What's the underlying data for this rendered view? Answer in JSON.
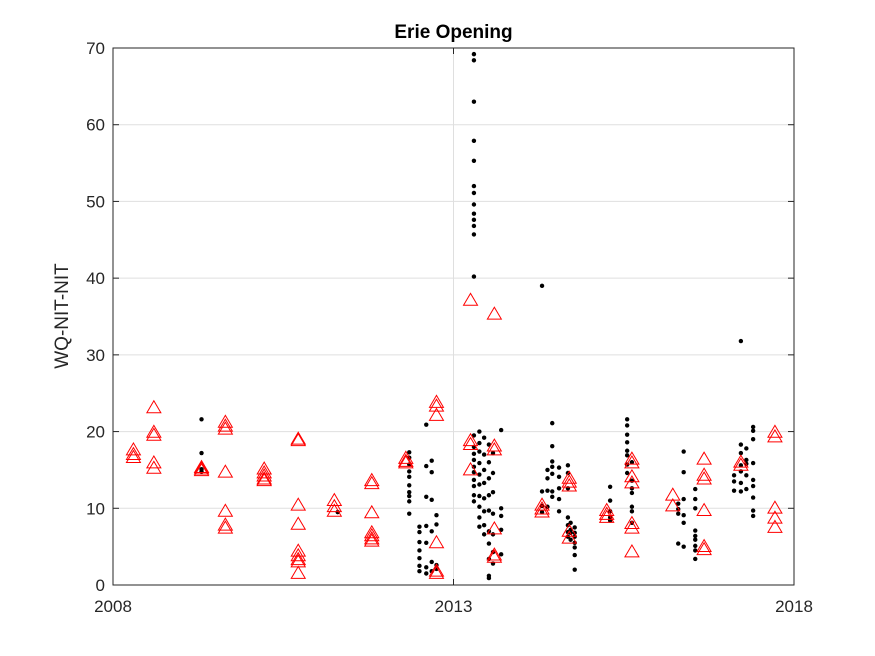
{
  "chart_data": {
    "type": "scatter",
    "title": "Erie Opening",
    "xlabel": "",
    "ylabel": "WQ-NIT-NIT",
    "xlim": [
      2008,
      2018
    ],
    "ylim": [
      0,
      70
    ],
    "x_ticks": [
      {
        "value": 2008,
        "label": "2008"
      },
      {
        "value": 2013,
        "label": "2013"
      },
      {
        "value": 2018,
        "label": "2018"
      }
    ],
    "y_ticks": [
      {
        "value": 0,
        "label": "0"
      },
      {
        "value": 10,
        "label": "10"
      },
      {
        "value": 20,
        "label": "20"
      },
      {
        "value": 30,
        "label": "30"
      },
      {
        "value": 40,
        "label": "40"
      },
      {
        "value": 50,
        "label": "50"
      },
      {
        "value": 60,
        "label": "60"
      },
      {
        "value": 70,
        "label": "70"
      }
    ],
    "grid": true,
    "legend": "none",
    "colors": {
      "observed": "#000000",
      "modeled": "#ff0000",
      "grid": "#dfdfdf",
      "axis": "#262626"
    },
    "series": [
      {
        "marker": "dot",
        "color": "#000000",
        "points": [
          [
            2009.3,
            21.6
          ],
          [
            2009.3,
            17.2
          ],
          [
            2009.3,
            15.1
          ],
          [
            2009.3,
            14.8
          ],
          [
            2011.3,
            9.5
          ],
          [
            2012.35,
            17.3
          ],
          [
            2012.35,
            16.6
          ],
          [
            2012.35,
            15.7
          ],
          [
            2012.35,
            14.8
          ],
          [
            2012.35,
            14.1
          ],
          [
            2012.35,
            13.0
          ],
          [
            2012.35,
            12.1
          ],
          [
            2012.35,
            11.6
          ],
          [
            2012.35,
            10.9
          ],
          [
            2012.35,
            9.3
          ],
          [
            2012.5,
            7.6
          ],
          [
            2012.5,
            6.9
          ],
          [
            2012.5,
            5.6
          ],
          [
            2012.5,
            4.5
          ],
          [
            2012.5,
            3.5
          ],
          [
            2012.5,
            2.5
          ],
          [
            2012.5,
            1.8
          ],
          [
            2012.6,
            20.9
          ],
          [
            2012.6,
            15.5
          ],
          [
            2012.6,
            11.5
          ],
          [
            2012.6,
            7.7
          ],
          [
            2012.6,
            5.5
          ],
          [
            2012.6,
            2.3
          ],
          [
            2012.6,
            1.5
          ],
          [
            2012.68,
            16.2
          ],
          [
            2012.68,
            14.7
          ],
          [
            2012.68,
            11.1
          ],
          [
            2012.68,
            7.0
          ],
          [
            2012.68,
            3.0
          ],
          [
            2012.68,
            1.8
          ],
          [
            2012.75,
            9.1
          ],
          [
            2012.75,
            7.9
          ],
          [
            2012.75,
            2.6
          ],
          [
            2012.75,
            2.1
          ],
          [
            2013.3,
            69.2
          ],
          [
            2013.3,
            68.4
          ],
          [
            2013.3,
            63.0
          ],
          [
            2013.3,
            57.9
          ],
          [
            2013.3,
            55.3
          ],
          [
            2013.3,
            52.0
          ],
          [
            2013.3,
            51.1
          ],
          [
            2013.3,
            49.6
          ],
          [
            2013.3,
            48.4
          ],
          [
            2013.3,
            47.6
          ],
          [
            2013.3,
            46.8
          ],
          [
            2013.3,
            45.7
          ],
          [
            2013.3,
            40.2
          ],
          [
            2013.3,
            19.5
          ],
          [
            2013.3,
            18.0
          ],
          [
            2013.3,
            17.1
          ],
          [
            2013.3,
            16.3
          ],
          [
            2013.3,
            15.4
          ],
          [
            2013.3,
            14.7
          ],
          [
            2013.3,
            13.7
          ],
          [
            2013.3,
            12.9
          ],
          [
            2013.3,
            11.7
          ],
          [
            2013.3,
            10.9
          ],
          [
            2013.38,
            20.0
          ],
          [
            2013.38,
            18.5
          ],
          [
            2013.38,
            17.4
          ],
          [
            2013.38,
            15.9
          ],
          [
            2013.38,
            14.4
          ],
          [
            2013.38,
            13.1
          ],
          [
            2013.38,
            11.6
          ],
          [
            2013.38,
            10.2
          ],
          [
            2013.38,
            8.8
          ],
          [
            2013.38,
            7.6
          ],
          [
            2013.45,
            19.2
          ],
          [
            2013.45,
            17.0
          ],
          [
            2013.45,
            15.0
          ],
          [
            2013.45,
            13.3
          ],
          [
            2013.45,
            11.3
          ],
          [
            2013.45,
            9.6
          ],
          [
            2013.45,
            7.8
          ],
          [
            2013.45,
            6.6
          ],
          [
            2013.52,
            18.3
          ],
          [
            2013.52,
            16.0
          ],
          [
            2013.52,
            13.9
          ],
          [
            2013.52,
            11.7
          ],
          [
            2013.52,
            9.7
          ],
          [
            2013.52,
            7.0
          ],
          [
            2013.52,
            5.4
          ],
          [
            2013.52,
            3.4
          ],
          [
            2013.52,
            1.2
          ],
          [
            2013.52,
            0.9
          ],
          [
            2013.58,
            17.2
          ],
          [
            2013.58,
            14.6
          ],
          [
            2013.58,
            12.1
          ],
          [
            2013.58,
            9.3
          ],
          [
            2013.58,
            6.6
          ],
          [
            2013.58,
            4.3
          ],
          [
            2013.58,
            2.8
          ],
          [
            2013.7,
            20.2
          ],
          [
            2013.7,
            10.0
          ],
          [
            2013.7,
            9.0
          ],
          [
            2013.7,
            7.2
          ],
          [
            2013.7,
            4.0
          ],
          [
            2014.3,
            39.0
          ],
          [
            2014.3,
            12.2
          ],
          [
            2014.3,
            10.3
          ],
          [
            2014.3,
            9.5
          ],
          [
            2014.38,
            15.0
          ],
          [
            2014.38,
            13.9
          ],
          [
            2014.38,
            12.3
          ],
          [
            2014.38,
            10.2
          ],
          [
            2014.45,
            21.1
          ],
          [
            2014.45,
            18.1
          ],
          [
            2014.45,
            16.1
          ],
          [
            2014.45,
            15.4
          ],
          [
            2014.45,
            14.5
          ],
          [
            2014.45,
            12.2
          ],
          [
            2014.45,
            11.5
          ],
          [
            2014.55,
            15.3
          ],
          [
            2014.55,
            14.1
          ],
          [
            2014.55,
            12.6
          ],
          [
            2014.55,
            11.2
          ],
          [
            2014.55,
            9.6
          ],
          [
            2014.68,
            15.6
          ],
          [
            2014.68,
            14.6
          ],
          [
            2014.68,
            12.6
          ],
          [
            2014.68,
            8.8
          ],
          [
            2014.68,
            7.8
          ],
          [
            2014.68,
            6.9
          ],
          [
            2014.68,
            6.3
          ],
          [
            2014.72,
            8.1
          ],
          [
            2014.72,
            7.2
          ],
          [
            2014.72,
            6.8
          ],
          [
            2014.72,
            5.9
          ],
          [
            2014.78,
            7.5
          ],
          [
            2014.78,
            6.8
          ],
          [
            2014.78,
            6.3
          ],
          [
            2014.78,
            5.5
          ],
          [
            2014.78,
            4.9
          ],
          [
            2014.78,
            3.9
          ],
          [
            2014.78,
            2.0
          ],
          [
            2015.3,
            12.8
          ],
          [
            2015.3,
            11.0
          ],
          [
            2015.3,
            9.6
          ],
          [
            2015.3,
            8.8
          ],
          [
            2015.3,
            8.4
          ],
          [
            2015.55,
            21.6
          ],
          [
            2015.55,
            20.8
          ],
          [
            2015.55,
            19.6
          ],
          [
            2015.55,
            18.6
          ],
          [
            2015.55,
            17.5
          ],
          [
            2015.55,
            16.9
          ],
          [
            2015.55,
            15.7
          ],
          [
            2015.55,
            14.6
          ],
          [
            2015.62,
            16.0
          ],
          [
            2015.62,
            13.6
          ],
          [
            2015.62,
            12.6
          ],
          [
            2015.62,
            12.0
          ],
          [
            2015.62,
            10.2
          ],
          [
            2015.62,
            9.6
          ],
          [
            2015.62,
            8.1
          ],
          [
            2016.3,
            10.6
          ],
          [
            2016.3,
            9.9
          ],
          [
            2016.3,
            9.3
          ],
          [
            2016.3,
            5.4
          ],
          [
            2016.38,
            17.4
          ],
          [
            2016.38,
            14.7
          ],
          [
            2016.38,
            11.2
          ],
          [
            2016.38,
            9.1
          ],
          [
            2016.38,
            8.1
          ],
          [
            2016.38,
            5.0
          ],
          [
            2016.55,
            12.5
          ],
          [
            2016.55,
            11.2
          ],
          [
            2016.55,
            10.0
          ],
          [
            2016.55,
            7.1
          ],
          [
            2016.55,
            6.4
          ],
          [
            2016.55,
            5.9
          ],
          [
            2016.55,
            5.1
          ],
          [
            2016.55,
            4.5
          ],
          [
            2016.55,
            3.4
          ],
          [
            2017.12,
            14.3
          ],
          [
            2017.12,
            13.5
          ],
          [
            2017.12,
            12.3
          ],
          [
            2017.22,
            31.8
          ],
          [
            2017.22,
            18.3
          ],
          [
            2017.22,
            17.2
          ],
          [
            2017.22,
            15.6
          ],
          [
            2017.22,
            14.8
          ],
          [
            2017.22,
            13.3
          ],
          [
            2017.22,
            12.2
          ],
          [
            2017.3,
            17.8
          ],
          [
            2017.3,
            16.3
          ],
          [
            2017.3,
            15.8
          ],
          [
            2017.3,
            14.3
          ],
          [
            2017.3,
            12.5
          ],
          [
            2017.4,
            20.6
          ],
          [
            2017.4,
            20.1
          ],
          [
            2017.4,
            19.0
          ],
          [
            2017.4,
            15.9
          ],
          [
            2017.4,
            13.7
          ],
          [
            2017.4,
            12.9
          ],
          [
            2017.4,
            11.4
          ],
          [
            2017.4,
            9.7
          ],
          [
            2017.4,
            9.0
          ]
        ]
      },
      {
        "marker": "triangle",
        "color": "#ff0000",
        "points": [
          [
            2008.3,
            17.6
          ],
          [
            2008.3,
            17.0
          ],
          [
            2008.3,
            16.6
          ],
          [
            2008.6,
            23.1
          ],
          [
            2008.6,
            19.9
          ],
          [
            2008.6,
            19.5
          ],
          [
            2008.6,
            15.9
          ],
          [
            2008.6,
            15.2
          ],
          [
            2009.3,
            15.3
          ],
          [
            2009.3,
            14.9
          ],
          [
            2009.3,
            15.1
          ],
          [
            2009.65,
            21.2
          ],
          [
            2009.65,
            20.7
          ],
          [
            2009.65,
            20.3
          ],
          [
            2009.65,
            14.7
          ],
          [
            2009.65,
            9.6
          ],
          [
            2009.65,
            7.8
          ],
          [
            2009.65,
            7.4
          ],
          [
            2010.22,
            15.1
          ],
          [
            2010.22,
            14.6
          ],
          [
            2010.22,
            14.2
          ],
          [
            2010.22,
            13.8
          ],
          [
            2010.22,
            13.6
          ],
          [
            2010.72,
            19.0
          ],
          [
            2010.72,
            18.8
          ],
          [
            2010.72,
            10.4
          ],
          [
            2010.72,
            7.9
          ],
          [
            2010.72,
            4.4
          ],
          [
            2010.72,
            3.8
          ],
          [
            2010.72,
            3.3
          ],
          [
            2010.72,
            3.0
          ],
          [
            2010.72,
            1.5
          ],
          [
            2011.25,
            11.0
          ],
          [
            2011.25,
            10.2
          ],
          [
            2011.25,
            9.6
          ],
          [
            2011.8,
            13.6
          ],
          [
            2011.8,
            13.2
          ],
          [
            2011.8,
            9.4
          ],
          [
            2011.8,
            6.8
          ],
          [
            2011.8,
            6.4
          ],
          [
            2011.8,
            6.0
          ],
          [
            2011.8,
            5.7
          ],
          [
            2012.3,
            16.5
          ],
          [
            2012.3,
            16.1
          ],
          [
            2012.3,
            15.9
          ],
          [
            2012.75,
            23.8
          ],
          [
            2012.75,
            23.3
          ],
          [
            2012.75,
            22.1
          ],
          [
            2012.75,
            5.5
          ],
          [
            2012.75,
            1.8
          ],
          [
            2012.75,
            1.5
          ],
          [
            2013.25,
            37.1
          ],
          [
            2013.25,
            18.8
          ],
          [
            2013.25,
            18.3
          ],
          [
            2013.25,
            15.0
          ],
          [
            2013.6,
            35.3
          ],
          [
            2013.6,
            18.1
          ],
          [
            2013.6,
            17.6
          ],
          [
            2013.6,
            7.3
          ],
          [
            2013.6,
            3.9
          ],
          [
            2013.6,
            3.6
          ],
          [
            2014.3,
            10.4
          ],
          [
            2014.3,
            9.9
          ],
          [
            2014.3,
            9.5
          ],
          [
            2014.7,
            13.9
          ],
          [
            2014.7,
            13.4
          ],
          [
            2014.7,
            12.9
          ],
          [
            2014.7,
            7.0
          ],
          [
            2014.7,
            6.1
          ],
          [
            2015.25,
            9.7
          ],
          [
            2015.25,
            9.2
          ],
          [
            2015.25,
            8.8
          ],
          [
            2015.62,
            16.4
          ],
          [
            2015.62,
            15.9
          ],
          [
            2015.62,
            14.1
          ],
          [
            2015.62,
            13.3
          ],
          [
            2015.62,
            8.0
          ],
          [
            2015.62,
            7.4
          ],
          [
            2015.62,
            4.3
          ],
          [
            2016.22,
            11.7
          ],
          [
            2016.22,
            10.3
          ],
          [
            2016.68,
            16.4
          ],
          [
            2016.68,
            14.3
          ],
          [
            2016.68,
            13.8
          ],
          [
            2016.68,
            9.7
          ],
          [
            2016.68,
            5.0
          ],
          [
            2016.68,
            4.6
          ],
          [
            2017.22,
            16.0
          ],
          [
            2017.22,
            15.6
          ],
          [
            2017.72,
            19.9
          ],
          [
            2017.72,
            19.3
          ],
          [
            2017.72,
            10.0
          ],
          [
            2017.72,
            8.7
          ],
          [
            2017.72,
            7.5
          ]
        ]
      }
    ]
  }
}
